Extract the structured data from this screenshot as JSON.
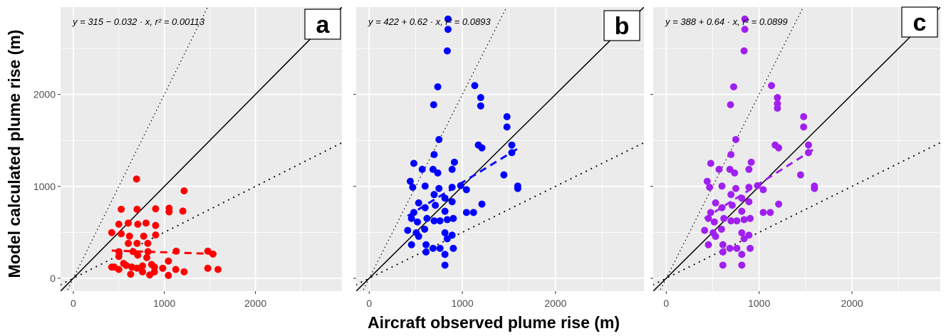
{
  "chart_data": {
    "type": "scatter",
    "xlabel": "Aircraft observed plume rise (m)",
    "ylabel": "Model calculated plume rise (m)",
    "xlim": [
      -140,
      2950
    ],
    "ylim": [
      -140,
      2950
    ],
    "x_ticks": [
      "0",
      "1000",
      "2000"
    ],
    "y_ticks": [
      "0",
      "1000",
      "2000"
    ],
    "grid": true,
    "reference_lines": [
      "1:1 solid",
      "2:1 dotted",
      "1:2 dotted"
    ],
    "panels": [
      {
        "label": "a",
        "color": "#FF0000",
        "equation": "y = 315 − 0.032 · x,  r² = 0.00113",
        "fit": {
          "intercept": 315,
          "slope": -0.032
        },
        "points": [
          [
            695,
            1080
          ],
          [
            526,
            751
          ],
          [
            700,
            751
          ],
          [
            904,
            756
          ],
          [
            1052,
            762
          ],
          [
            1052,
            723
          ],
          [
            1217,
            951
          ],
          [
            1203,
            731
          ],
          [
            500,
            588
          ],
          [
            604,
            601
          ],
          [
            708,
            588
          ],
          [
            799,
            601
          ],
          [
            904,
            575
          ],
          [
            422,
            497
          ],
          [
            526,
            484
          ],
          [
            617,
            458
          ],
          [
            773,
            458
          ],
          [
            904,
            471
          ],
          [
            604,
            380
          ],
          [
            700,
            380
          ],
          [
            818,
            380
          ],
          [
            500,
            290
          ],
          [
            656,
            290
          ],
          [
            820,
            290
          ],
          [
            1130,
            295
          ],
          [
            1477,
            295
          ],
          [
            1534,
            264
          ],
          [
            500,
            238
          ],
          [
            708,
            251
          ],
          [
            807,
            225
          ],
          [
            1044,
            187
          ],
          [
            448,
            122
          ],
          [
            552,
            161
          ],
          [
            643,
            122
          ],
          [
            760,
            135
          ],
          [
            891,
            122
          ],
          [
            982,
            109
          ],
          [
            1125,
            96
          ],
          [
            1217,
            70
          ],
          [
            630,
            44
          ],
          [
            760,
            70
          ],
          [
            839,
            36
          ],
          [
            1044,
            31
          ],
          [
            1477,
            109
          ],
          [
            1589,
            96
          ],
          [
            500,
            96
          ],
          [
            891,
            70
          ],
          [
            422,
            122
          ],
          [
            580,
            140
          ],
          [
            700,
            110
          ],
          [
            860,
            150
          ]
        ]
      },
      {
        "label": "b",
        "color": "#0000FF",
        "equation": "y = 422 + 0.62 · x,  r² = 0.0893",
        "fit": {
          "intercept": 422,
          "slope": 0.62
        },
        "points": [
          [
            846,
            2820
          ],
          [
            846,
            2708
          ],
          [
            838,
            2474
          ],
          [
            736,
            2083
          ],
          [
            692,
            1888
          ],
          [
            1133,
            2096
          ],
          [
            1197,
            1966
          ],
          [
            1197,
            1875
          ],
          [
            1479,
            1758
          ],
          [
            1479,
            1646
          ],
          [
            749,
            1510
          ],
          [
            1172,
            1450
          ],
          [
            1210,
            1419
          ],
          [
            1531,
            1450
          ],
          [
            1531,
            1367
          ],
          [
            697,
            1346
          ],
          [
            479,
            1250
          ],
          [
            569,
            1185
          ],
          [
            685,
            1185
          ],
          [
            736,
            1146
          ],
          [
            915,
            1263
          ],
          [
            890,
            1185
          ],
          [
            1446,
            1125
          ],
          [
            441,
            1055
          ],
          [
            467,
            990
          ],
          [
            600,
            1003
          ],
          [
            749,
            977
          ],
          [
            890,
            990
          ],
          [
            1044,
            964
          ],
          [
            982,
            1008
          ],
          [
            1595,
            1003
          ],
          [
            1595,
            977
          ],
          [
            531,
            820
          ],
          [
            697,
            911
          ],
          [
            813,
            872
          ],
          [
            890,
            833
          ],
          [
            1210,
            807
          ],
          [
            1044,
            716
          ],
          [
            1120,
            716
          ],
          [
            479,
            716
          ],
          [
            600,
            768
          ],
          [
            710,
            794
          ],
          [
            813,
            729
          ],
          [
            454,
            651
          ],
          [
            518,
            612
          ],
          [
            620,
            651
          ],
          [
            697,
            625
          ],
          [
            760,
            625
          ],
          [
            838,
            638
          ],
          [
            903,
            651
          ],
          [
            413,
            521
          ],
          [
            505,
            495
          ],
          [
            595,
            534
          ],
          [
            813,
            495
          ],
          [
            890,
            469
          ],
          [
            454,
            365
          ],
          [
            610,
            365
          ],
          [
            685,
            326
          ],
          [
            760,
            326
          ],
          [
            903,
            326
          ],
          [
            610,
            286
          ],
          [
            813,
            260
          ],
          [
            813,
            143
          ],
          [
            531,
            456
          ],
          [
            838,
            430
          ]
        ]
      },
      {
        "label": "c",
        "color": "#A020F0",
        "equation": "y = 388 + 0.64 · x,  r² = 0.0899",
        "fit": {
          "intercept": 388,
          "slope": 0.64
        },
        "points": [
          [
            846,
            2820
          ],
          [
            846,
            2708
          ],
          [
            838,
            2474
          ],
          [
            726,
            2083
          ],
          [
            692,
            1888
          ],
          [
            1133,
            2096
          ],
          [
            1197,
            1966
          ],
          [
            1197,
            1900
          ],
          [
            1197,
            1850
          ],
          [
            1479,
            1758
          ],
          [
            1479,
            1646
          ],
          [
            749,
            1510
          ],
          [
            1172,
            1450
          ],
          [
            1210,
            1419
          ],
          [
            1531,
            1450
          ],
          [
            1531,
            1367
          ],
          [
            697,
            1346
          ],
          [
            479,
            1250
          ],
          [
            569,
            1185
          ],
          [
            685,
            1185
          ],
          [
            736,
            1146
          ],
          [
            915,
            1263
          ],
          [
            890,
            1185
          ],
          [
            1446,
            1125
          ],
          [
            441,
            1055
          ],
          [
            467,
            990
          ],
          [
            600,
            1003
          ],
          [
            749,
            977
          ],
          [
            890,
            990
          ],
          [
            1044,
            964
          ],
          [
            982,
            1008
          ],
          [
            1595,
            1003
          ],
          [
            1595,
            977
          ],
          [
            531,
            820
          ],
          [
            697,
            911
          ],
          [
            813,
            872
          ],
          [
            890,
            833
          ],
          [
            1210,
            807
          ],
          [
            1044,
            716
          ],
          [
            1120,
            716
          ],
          [
            479,
            716
          ],
          [
            600,
            768
          ],
          [
            710,
            794
          ],
          [
            813,
            729
          ],
          [
            454,
            651
          ],
          [
            518,
            612
          ],
          [
            620,
            651
          ],
          [
            697,
            625
          ],
          [
            760,
            625
          ],
          [
            838,
            638
          ],
          [
            903,
            651
          ],
          [
            413,
            521
          ],
          [
            505,
            495
          ],
          [
            595,
            534
          ],
          [
            813,
            495
          ],
          [
            890,
            469
          ],
          [
            454,
            365
          ],
          [
            610,
            365
          ],
          [
            685,
            326
          ],
          [
            760,
            326
          ],
          [
            903,
            326
          ],
          [
            610,
            286
          ],
          [
            813,
            260
          ],
          [
            610,
            143
          ],
          [
            813,
            143
          ],
          [
            531,
            456
          ],
          [
            838,
            430
          ]
        ]
      }
    ]
  }
}
